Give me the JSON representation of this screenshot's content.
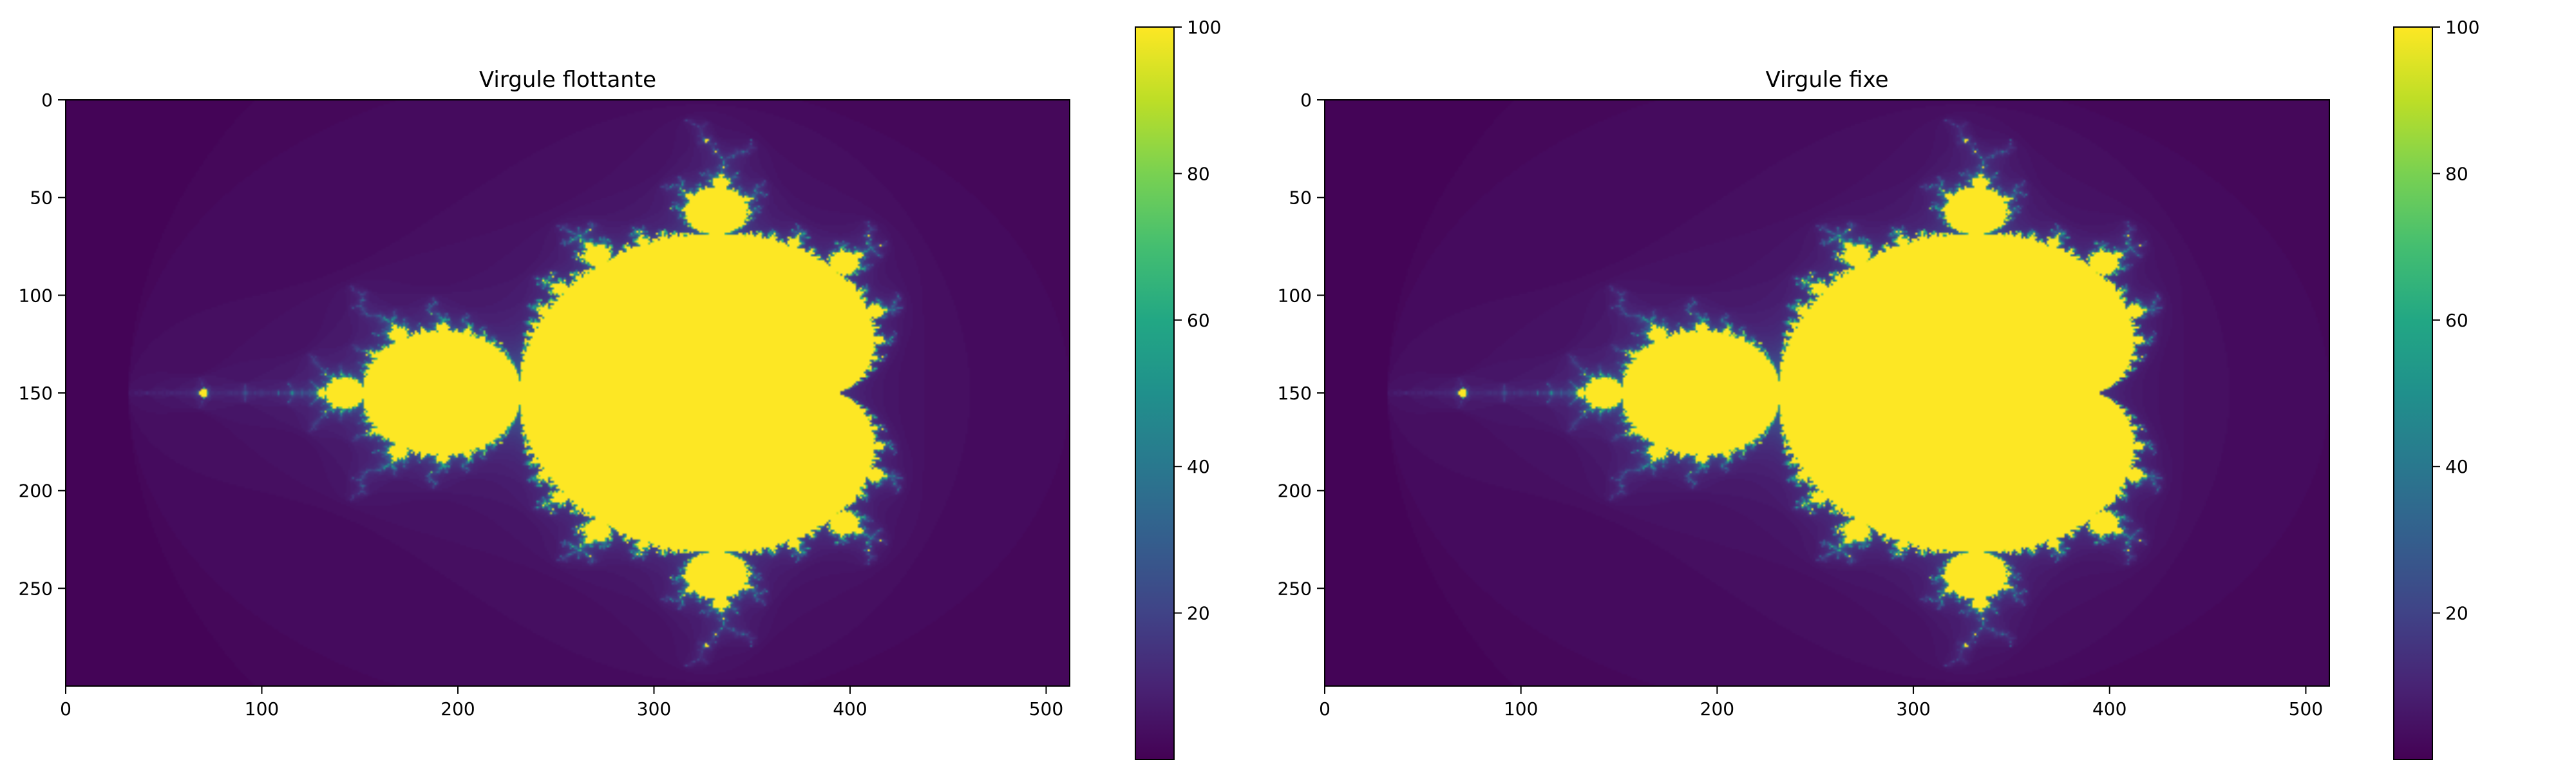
{
  "chart_data": [
    {
      "type": "heatmap",
      "title": "Virgule flottante",
      "xlabel": "",
      "ylabel": "",
      "image_size": {
        "cols": 512,
        "rows": 300
      },
      "xlim": [
        0,
        512
      ],
      "ylim": [
        300,
        0
      ],
      "xticks": [
        0,
        100,
        200,
        300,
        400,
        500
      ],
      "yticks": [
        0,
        50,
        100,
        150,
        200,
        250
      ],
      "description_values": "Mandelbrot set iteration counts (escape time), max 100 iterations",
      "complex_domain": {
        "re": [
          -2.2,
          1.0
        ],
        "im": [
          -1.2,
          1.2
        ]
      },
      "max_iter": 100,
      "colormap": "viridis",
      "colorbar": {
        "range": [
          0,
          100
        ],
        "ticks": [
          20,
          40,
          60,
          80,
          100
        ]
      },
      "grid": false
    },
    {
      "type": "heatmap",
      "title": "Virgule fixe",
      "xlabel": "",
      "ylabel": "",
      "image_size": {
        "cols": 512,
        "rows": 300
      },
      "xlim": [
        0,
        512
      ],
      "ylim": [
        300,
        0
      ],
      "xticks": [
        0,
        100,
        200,
        300,
        400,
        500
      ],
      "yticks": [
        0,
        50,
        100,
        150,
        200,
        250
      ],
      "description_values": "Mandelbrot set iteration counts (escape time), max 100 iterations",
      "complex_domain": {
        "re": [
          -2.2,
          1.0
        ],
        "im": [
          -1.2,
          1.2
        ]
      },
      "max_iter": 100,
      "colormap": "viridis",
      "colorbar": {
        "range": [
          0,
          100
        ],
        "ticks": [
          20,
          40,
          60,
          80,
          100
        ]
      },
      "grid": false
    }
  ]
}
